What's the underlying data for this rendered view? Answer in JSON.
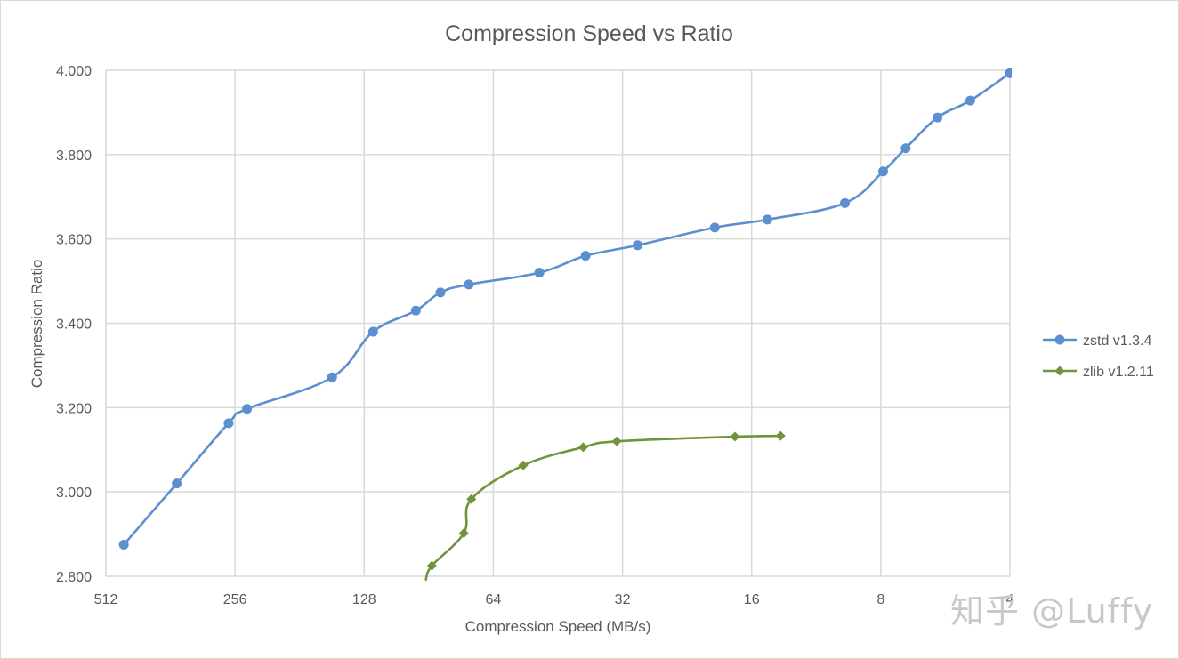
{
  "chart_data": {
    "type": "line",
    "title": "Compression Speed vs Ratio",
    "xlabel": "Compression Speed (MB/s)",
    "ylabel": "Compression Ratio",
    "x_scale": "log2",
    "x_reversed": true,
    "xlim": [
      512,
      4
    ],
    "ylim": [
      2.8,
      4.0
    ],
    "x_ticks": [
      "512",
      "256",
      "128",
      "64",
      "32",
      "16",
      "8",
      "4"
    ],
    "x_tick_values": [
      512,
      256,
      128,
      64,
      32,
      16,
      8,
      4
    ],
    "y_ticks": [
      "2.800",
      "3.000",
      "3.200",
      "3.400",
      "3.600",
      "3.800",
      "4.000"
    ],
    "y_tick_values": [
      2.8,
      3.0,
      3.2,
      3.4,
      3.6,
      3.8,
      4.0
    ],
    "grid": true,
    "legend_position": "right",
    "series": [
      {
        "name": "zstd v1.3.4",
        "color": "#5b8fd0",
        "marker": "circle",
        "points": [
          [
            465,
            2.875
          ],
          [
            350,
            3.02
          ],
          [
            265,
            3.163
          ],
          [
            240,
            3.197
          ],
          [
            152,
            3.272
          ],
          [
            122,
            3.38
          ],
          [
            97,
            3.43
          ],
          [
            85,
            3.473
          ],
          [
            73,
            3.492
          ],
          [
            50,
            3.52
          ],
          [
            39,
            3.56
          ],
          [
            29.5,
            3.585
          ],
          [
            19.5,
            3.627
          ],
          [
            14.7,
            3.646
          ],
          [
            9.7,
            3.685
          ],
          [
            7.9,
            3.76
          ],
          [
            7.0,
            3.815
          ],
          [
            5.9,
            3.888
          ],
          [
            4.95,
            3.928
          ],
          [
            4.0,
            3.993
          ]
        ]
      },
      {
        "name": "zlib v1.2.11",
        "color": "#70943c",
        "marker": "diamond",
        "points": [
          [
            89,
            2.825
          ],
          [
            75,
            2.902
          ],
          [
            72,
            2.983
          ],
          [
            54.5,
            3.063
          ],
          [
            39.5,
            3.106
          ],
          [
            33,
            3.12
          ],
          [
            17.5,
            3.131
          ],
          [
            13.7,
            3.133
          ]
        ],
        "line_start": [
          92,
          2.79
        ]
      }
    ]
  },
  "watermark": "知乎 @Luffy"
}
